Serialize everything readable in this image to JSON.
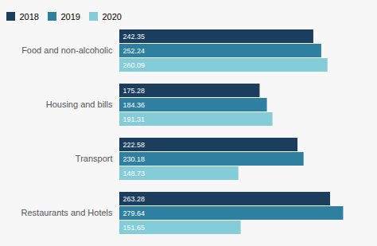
{
  "chart_data": {
    "type": "bar",
    "orientation": "horizontal",
    "categories": [
      "Food and non-alcoholic",
      "Housing and bills",
      "Transport",
      "Restaurants and Hotels"
    ],
    "series": [
      {
        "name": "2018",
        "color": "#1b3d5e",
        "values": [
          242.35,
          175.28,
          222.58,
          263.28
        ]
      },
      {
        "name": "2019",
        "color": "#2e7fa0",
        "values": [
          252.24,
          184.36,
          230.18,
          279.64
        ]
      },
      {
        "name": "2020",
        "color": "#85ccd9",
        "values": [
          260.09,
          191.31,
          148.73,
          151.65
        ]
      }
    ],
    "xlim": [
      0,
      310
    ],
    "tick_labels": false,
    "data_labels": true,
    "legend": "upper left",
    "grid": false
  }
}
